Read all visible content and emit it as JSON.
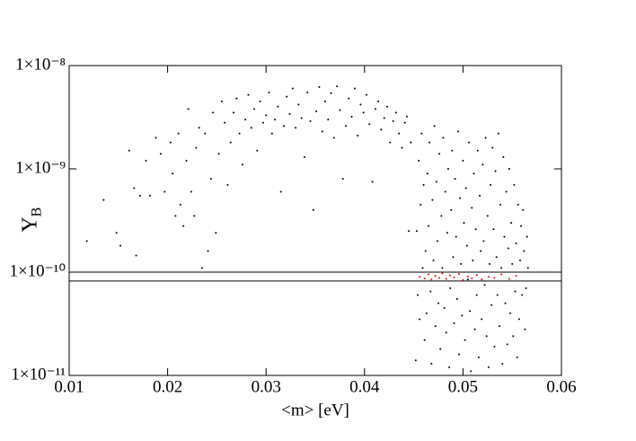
{
  "chart_data": {
    "type": "scatter",
    "xlabel": "<m> [eV]",
    "ylabel": "Y",
    "ylabel_subscript": "B",
    "xlim": [
      0.01,
      0.06
    ],
    "xticks": [
      0.01,
      0.02,
      0.03,
      0.04,
      0.05,
      0.06
    ],
    "ylim": [
      1e-11,
      1e-08
    ],
    "log_y": true,
    "yticks": [
      {
        "value": 1e-11,
        "label": "1×10⁻¹¹"
      },
      {
        "value": 1e-10,
        "label": "1×10⁻¹⁰"
      },
      {
        "value": 1e-09,
        "label": "1×10⁻⁹"
      },
      {
        "value": 1e-08,
        "label": "1×10⁻⁸"
      }
    ],
    "hlines": [
      1e-10,
      8.2e-11
    ],
    "hline_color": "#000000",
    "series": [
      {
        "color": "#000000",
        "x": [
          0.0118,
          0.0135,
          0.0148,
          0.0152,
          0.0161,
          0.0166,
          0.0168,
          0.0172,
          0.0178,
          0.0182,
          0.0188,
          0.0193,
          0.0197,
          0.0203,
          0.0205,
          0.0208,
          0.0211,
          0.0213,
          0.0216,
          0.0219,
          0.0221,
          0.0224,
          0.0227,
          0.0229,
          0.0232,
          0.0235,
          0.0238,
          0.0241,
          0.0244,
          0.0246,
          0.0249,
          0.0252,
          0.0255,
          0.0258,
          0.0261,
          0.0264,
          0.0267,
          0.027,
          0.0273,
          0.0276,
          0.0279,
          0.0282,
          0.0285,
          0.0288,
          0.0291,
          0.0294,
          0.0297,
          0.03,
          0.0303,
          0.0306,
          0.0309,
          0.0312,
          0.0315,
          0.0318,
          0.0321,
          0.0324,
          0.0327,
          0.033,
          0.0333,
          0.0336,
          0.0339,
          0.0342,
          0.0345,
          0.0348,
          0.0351,
          0.0354,
          0.0357,
          0.036,
          0.0363,
          0.0366,
          0.0369,
          0.0372,
          0.0375,
          0.0378,
          0.0381,
          0.0384,
          0.0387,
          0.039,
          0.0393,
          0.0396,
          0.0399,
          0.0402,
          0.0405,
          0.0408,
          0.0411,
          0.0414,
          0.0417,
          0.042,
          0.0423,
          0.0426,
          0.0429,
          0.0432,
          0.0435,
          0.0438,
          0.0441,
          0.0443,
          0.0445,
          0.0447,
          0.0452,
          0.0453,
          0.0454,
          0.0455,
          0.0456,
          0.0457,
          0.0458,
          0.0459,
          0.046,
          0.0461,
          0.0462,
          0.0463,
          0.0464,
          0.0465,
          0.0466,
          0.0467,
          0.0468,
          0.0469,
          0.047,
          0.0471,
          0.0472,
          0.0473,
          0.0474,
          0.0475,
          0.0476,
          0.0477,
          0.0478,
          0.0479,
          0.048,
          0.0481,
          0.0482,
          0.0483,
          0.0484,
          0.0485,
          0.0486,
          0.0487,
          0.0488,
          0.0489,
          0.049,
          0.0491,
          0.0492,
          0.0493,
          0.0494,
          0.0495,
          0.0496,
          0.0497,
          0.0498,
          0.0499,
          0.05,
          0.0501,
          0.0502,
          0.0503,
          0.0504,
          0.0505,
          0.0506,
          0.0507,
          0.0508,
          0.0509,
          0.051,
          0.0511,
          0.0512,
          0.0513,
          0.0514,
          0.0515,
          0.0516,
          0.0517,
          0.0518,
          0.0519,
          0.052,
          0.0521,
          0.0522,
          0.0523,
          0.0524,
          0.0525,
          0.0526,
          0.0527,
          0.0528,
          0.0529,
          0.053,
          0.0531,
          0.0532,
          0.0533,
          0.0534,
          0.0535,
          0.0536,
          0.0537,
          0.0538,
          0.0539,
          0.054,
          0.0541,
          0.0542,
          0.0543,
          0.0544,
          0.0545,
          0.0546,
          0.0547,
          0.0548,
          0.0549,
          0.055,
          0.0551,
          0.0552,
          0.0553,
          0.0554,
          0.0555,
          0.0556,
          0.0557,
          0.0558,
          0.0559,
          0.056,
          0.0561,
          0.0562,
          0.0563,
          0.0564,
          0.0565,
          0.0566
        ],
        "y": [
          2e-10,
          5e-10,
          2.4e-10,
          1.8e-10,
          1.5e-09,
          6.5e-10,
          1.45e-10,
          5.5e-10,
          1.2e-09,
          5.5e-10,
          2e-09,
          1.4e-09,
          6e-10,
          1.8e-09,
          9e-10,
          3.5e-10,
          2.2e-09,
          4.5e-10,
          2.8e-10,
          1.2e-09,
          3.8e-09,
          6e-10,
          3.5e-10,
          1.6e-09,
          2.5e-09,
          1.1e-10,
          2.2e-09,
          1.6e-10,
          8e-10,
          3.5e-09,
          2.4e-10,
          1.4e-09,
          4.5e-09,
          2.8e-09,
          7e-10,
          1.8e-09,
          3.5e-09,
          4.8e-09,
          2.2e-09,
          1.1e-09,
          3e-09,
          5.2e-09,
          2.5e-09,
          3.8e-09,
          1.5e-09,
          4.5e-09,
          2.8e-09,
          3.3e-09,
          5.5e-09,
          2.2e-09,
          3e-09,
          4e-09,
          6e-10,
          2.6e-09,
          5e-09,
          3.4e-09,
          6e-09,
          2.5e-09,
          4.2e-09,
          3.1e-09,
          1.3e-09,
          5.5e-09,
          2.9e-09,
          4e-10,
          3.6e-09,
          6.2e-09,
          2.3e-09,
          4.5e-09,
          3e-09,
          5.4e-09,
          2e-09,
          6.3e-09,
          3.7e-09,
          8e-10,
          2.6e-09,
          4.8e-09,
          3.2e-09,
          6e-09,
          2.1e-09,
          4.2e-09,
          3.5e-09,
          5.2e-09,
          2.7e-09,
          7.5e-10,
          3.8e-09,
          4.5e-09,
          2.4e-09,
          3.1e-09,
          4e-09,
          1.8e-09,
          2.9e-09,
          3.5e-09,
          2.2e-09,
          1.6e-09,
          2.8e-09,
          3.2e-09,
          2.5e-10,
          1.8e-09,
          1.4e-11,
          2.5e-10,
          6e-11,
          1.2e-09,
          3.5e-11,
          4.5e-10,
          2.2e-09,
          1.1e-10,
          7e-10,
          2.2e-11,
          1.6e-10,
          4e-11,
          9e-10,
          2.8e-10,
          1.8e-09,
          6.5e-11,
          1.3e-11,
          5e-10,
          1.3e-10,
          2.6e-09,
          3e-11,
          7.5e-10,
          2e-10,
          5e-11,
          1.4e-09,
          1.8e-11,
          3.5e-10,
          1.1e-10,
          2e-09,
          4.5e-11,
          6e-10,
          2.6e-11,
          2.4e-10,
          1e-09,
          1.2e-11,
          7e-11,
          4e-10,
          1.5e-09,
          1.4e-10,
          3.2e-11,
          8e-10,
          2.2e-10,
          5.5e-11,
          2.3e-09,
          1.6e-11,
          5.2e-10,
          1.2e-10,
          3.8e-11,
          1.2e-09,
          3e-10,
          2.2e-11,
          6.5e-10,
          1.8e-10,
          8.5e-11,
          1.8e-09,
          4.2e-11,
          1.1e-11,
          4.2e-10,
          1.3e-10,
          9e-10,
          2.8e-11,
          2.6e-10,
          6e-11,
          1.5e-09,
          1.5e-11,
          5.5e-10,
          1.6e-10,
          3.5e-11,
          1.1e-09,
          2e-10,
          7.5e-11,
          2e-09,
          2.4e-11,
          3.5e-10,
          1.2e-11,
          1.2e-10,
          7e-10,
          4.8e-11,
          1.6e-09,
          2.6e-10,
          1.9e-11,
          9.5e-10,
          1.4e-10,
          6e-11,
          2.2e-09,
          3e-11,
          4.5e-10,
          1.1e-10,
          1.3e-11,
          1.3e-09,
          2.2e-10,
          5e-11,
          6e-10,
          2e-11,
          1.7e-10,
          1e-09,
          4e-11,
          3e-10,
          1.2e-10,
          2.4e-11,
          7e-10,
          6.5e-11,
          1.9e-10,
          1.5e-11,
          4.5e-10,
          3.5e-11,
          1.3e-10,
          2.8e-10,
          6e-11,
          4e-10,
          1.6e-10,
          2.8e-11,
          7e-11,
          2.2e-10,
          1.1e-10
        ]
      },
      {
        "color": "#ff0000",
        "x": [
          0.0456,
          0.0461,
          0.0465,
          0.0468,
          0.0472,
          0.0476,
          0.0479,
          0.0483,
          0.0487,
          0.0491,
          0.0496,
          0.05,
          0.0505,
          0.0509,
          0.0514,
          0.0519,
          0.0526,
          0.0532,
          0.0539,
          0.0547,
          0.0554
        ],
        "y": [
          9e-11,
          8.7e-11,
          9.5e-11,
          8.5e-11,
          9.2e-11,
          8.8e-11,
          9.7e-11,
          8.6e-11,
          9.3e-11,
          8.9e-11,
          9.6e-11,
          8.4e-11,
          9.1e-11,
          8.7e-11,
          9.4e-11,
          8.5e-11,
          9e-11,
          8.8e-11,
          9.5e-11,
          8.6e-11,
          9.2e-11
        ]
      }
    ]
  }
}
